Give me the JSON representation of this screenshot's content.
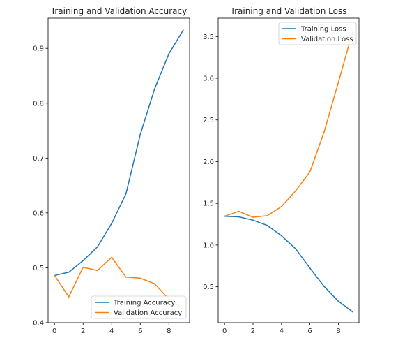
{
  "chart_data": [
    {
      "type": "line",
      "title": "Training and Validation Accuracy",
      "xlabel": "",
      "ylabel": "",
      "x": [
        0,
        1,
        2,
        3,
        4,
        5,
        6,
        7,
        8,
        9
      ],
      "xlim": [
        -0.45,
        9.45
      ],
      "ylim": [
        0.4,
        0.955
      ],
      "xticks": [
        0,
        2,
        4,
        6,
        8
      ],
      "yticks": [
        0.4,
        0.5,
        0.6,
        0.7,
        0.8,
        0.9
      ],
      "xtick_labels": [
        "0",
        "2",
        "4",
        "6",
        "8"
      ],
      "ytick_labels": [
        "0.4",
        "0.5",
        "0.6",
        "0.7",
        "0.8",
        "0.9"
      ],
      "legend_position": "lower-right",
      "grid": false,
      "series": [
        {
          "name": "Training Accuracy",
          "color": "#1f77b4",
          "values": [
            0.486,
            0.492,
            0.513,
            0.538,
            0.581,
            0.635,
            0.743,
            0.826,
            0.89,
            0.933
          ]
        },
        {
          "name": "Validation Accuracy",
          "color": "#ff7f0e",
          "values": [
            0.486,
            0.447,
            0.501,
            0.495,
            0.519,
            0.483,
            0.481,
            0.471,
            0.443,
            0.425
          ]
        }
      ]
    },
    {
      "type": "line",
      "title": "Training and Validation Loss",
      "xlabel": "",
      "ylabel": "",
      "x": [
        0,
        1,
        2,
        3,
        4,
        5,
        6,
        7,
        8,
        9
      ],
      "xlim": [
        -0.45,
        9.45
      ],
      "ylim": [
        0.07,
        3.72
      ],
      "xticks": [
        0,
        2,
        4,
        6,
        8
      ],
      "yticks": [
        0.5,
        1.0,
        1.5,
        2.0,
        2.5,
        3.0,
        3.5
      ],
      "xtick_labels": [
        "0",
        "2",
        "4",
        "6",
        "8"
      ],
      "ytick_labels": [
        "0.5",
        "1.0",
        "1.5",
        "2.0",
        "2.5",
        "3.0",
        "3.5"
      ],
      "legend_position": "upper-right",
      "grid": false,
      "series": [
        {
          "name": "Training Loss",
          "color": "#1f77b4",
          "values": [
            1.345,
            1.338,
            1.298,
            1.236,
            1.112,
            0.955,
            0.724,
            0.504,
            0.327,
            0.2
          ]
        },
        {
          "name": "Validation Loss",
          "color": "#ff7f0e",
          "values": [
            1.346,
            1.405,
            1.334,
            1.352,
            1.462,
            1.65,
            1.877,
            2.357,
            2.95,
            3.555
          ]
        }
      ]
    }
  ]
}
